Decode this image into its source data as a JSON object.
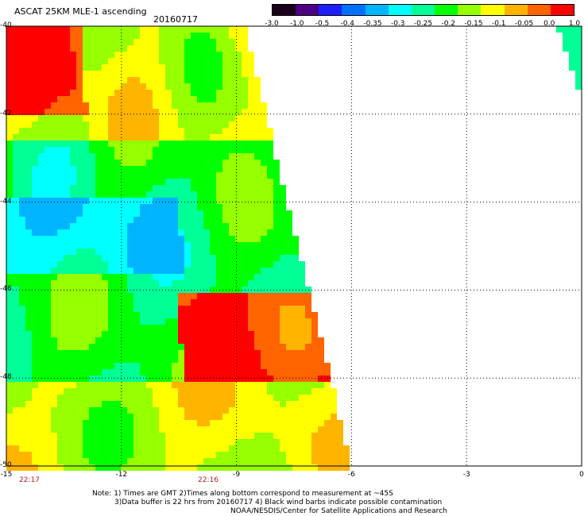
{
  "header": {
    "title": "ASCAT 25KM MLE-1 ascending",
    "date": "20160717"
  },
  "colorbar": {
    "labels": [
      "-3.0",
      "-1.0",
      "-0.5",
      "-0.4",
      "-0.35",
      "-0.3",
      "-0.25",
      "-0.2",
      "-0.15",
      "-0.1",
      "-0.05",
      "0.0",
      "1.0"
    ],
    "colors": [
      "#1a001a",
      "#4b0082",
      "#1e1eff",
      "#0070ff",
      "#00b4ff",
      "#00ffff",
      "#00ff96",
      "#00ff00",
      "#96ff00",
      "#ffff00",
      "#ffb400",
      "#ff6400",
      "#ff0000"
    ]
  },
  "axes": {
    "y_labels": [
      "-40",
      "-42",
      "-44",
      "-46",
      "-48",
      "-50"
    ],
    "x_labels": [
      "-15",
      "-12",
      "-9",
      "-6",
      "-3",
      "0"
    ],
    "lat_range": [
      -50,
      -40
    ],
    "lon_range": [
      -15,
      0
    ]
  },
  "time_labels": [
    "22:17",
    "22:16"
  ],
  "notes": {
    "line1": "Note: 1) Times are GMT 2)Times along bottom correspond to measurement at ~45S",
    "line2": "3)Data buffer is 22 hrs from 20160717 4) Black wind barbs indicate possible contamination",
    "line3": "NOAA/NESDIS/Center for Satellite Applications and Research"
  }
}
